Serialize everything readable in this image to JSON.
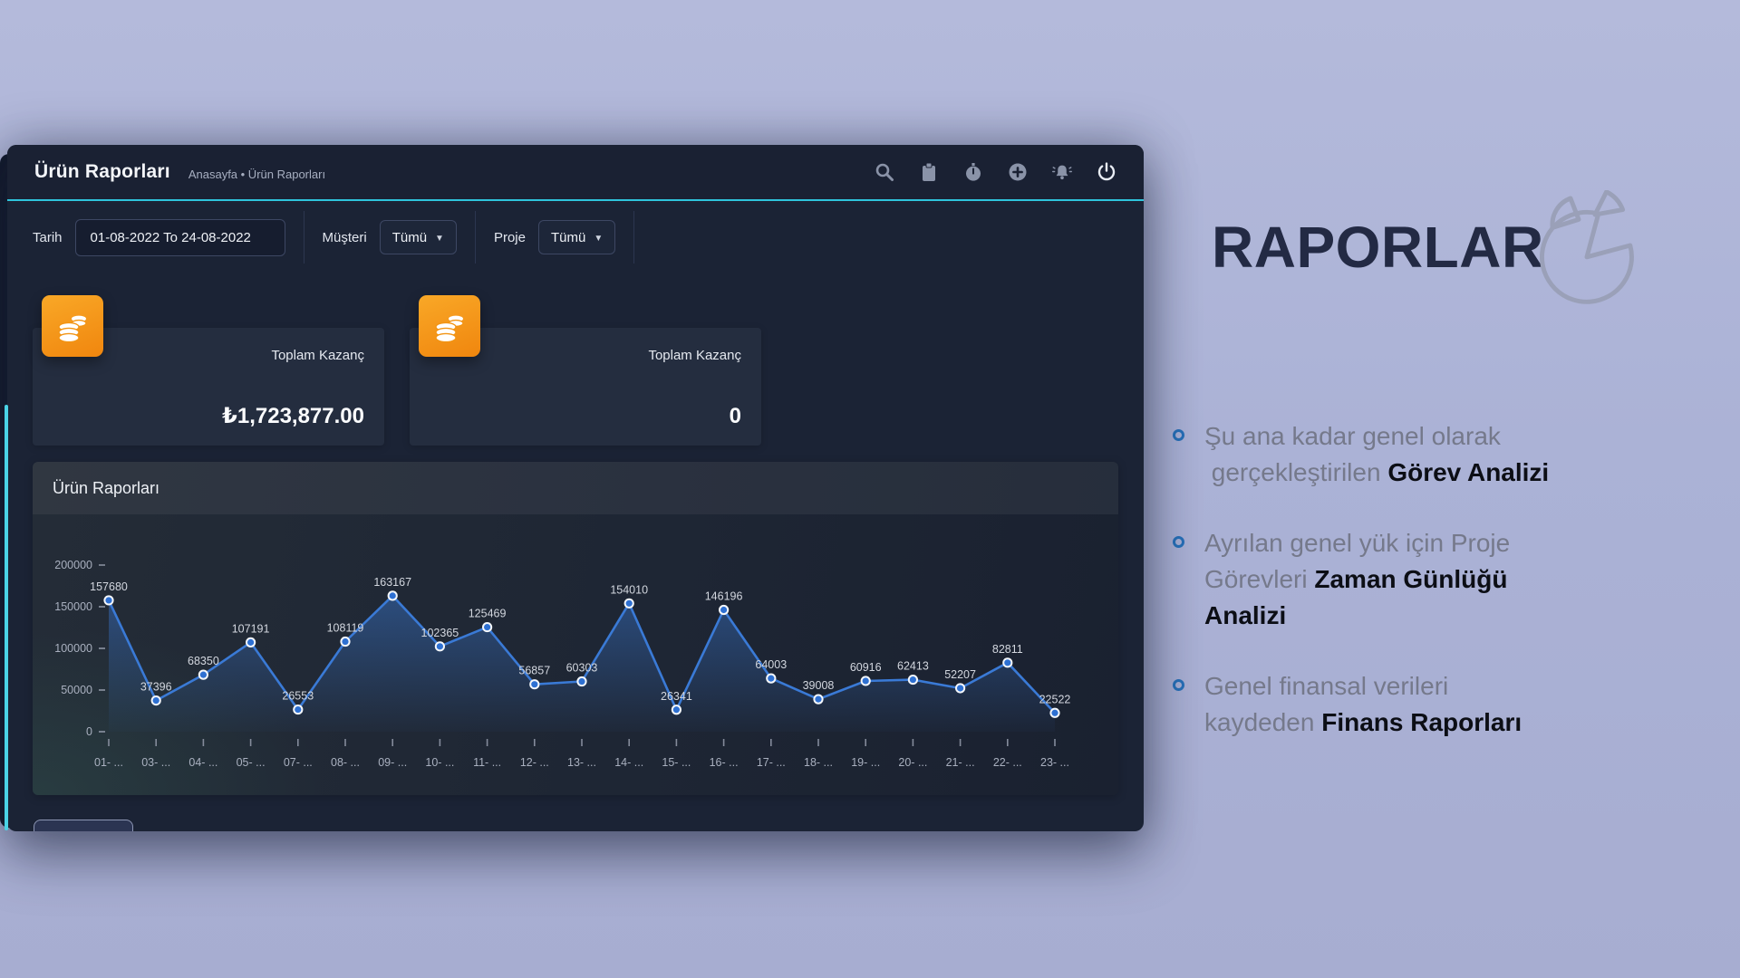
{
  "window": {
    "header": {
      "title": "Ürün Raporları",
      "breadcrumb": "Anasayfa • Ürün Raporları",
      "icons": [
        "search-icon",
        "clipboard-icon",
        "stopwatch-icon",
        "plus-circle-icon",
        "bell-icon",
        "power-icon"
      ]
    },
    "filters": {
      "date_label": "Tarih",
      "date_value": "01-08-2022 To 24-08-2022",
      "customer_label": "Müşteri",
      "customer_value": "Tümü",
      "project_label": "Proje",
      "project_value": "Tümü"
    },
    "cards": [
      {
        "label": "Toplam Kazanç",
        "value": "₺1,723,877.00",
        "icon": "coins-icon"
      },
      {
        "label": "Toplam Kazanç",
        "value": "0",
        "icon": "coins-icon"
      }
    ],
    "panel_title": "Ürün Raporları"
  },
  "chart_data": {
    "type": "line",
    "title": "Ürün Raporları",
    "x": [
      "01- ...",
      "03- ...",
      "04- ...",
      "05- ...",
      "07- ...",
      "08- ...",
      "09- ...",
      "10- ...",
      "11- ...",
      "12- ...",
      "13- ...",
      "14- ...",
      "15- ...",
      "16- ...",
      "17- ...",
      "18- ...",
      "19- ...",
      "20- ...",
      "21- ...",
      "22- ...",
      "23- ..."
    ],
    "values": [
      157680,
      37396,
      68350,
      107191,
      26553,
      108119,
      163167,
      102365,
      125469,
      56857,
      60303,
      154010,
      26341,
      146196,
      64003,
      39008,
      60916,
      62413,
      52207,
      82811,
      22522
    ],
    "ylim": [
      0,
      200000
    ],
    "yticks": [
      0,
      50000,
      100000,
      150000,
      200000
    ],
    "grid": false,
    "legend": "none",
    "line_color": "#3a7ad6",
    "point_fill": "#2e70d2",
    "area_fill": "blue-gradient-fade"
  },
  "aside": {
    "heading": "RAPORLAR",
    "bullets": [
      {
        "lines": [
          [
            {
              "t": "Şu ana kadar genel olarak",
              "b": false
            }
          ],
          [
            {
              "t": " gerçekleştirilen ",
              "b": false
            },
            {
              "t": "Görev Analizi",
              "b": true
            }
          ]
        ]
      },
      {
        "lines": [
          [
            {
              "t": "Ayrılan genel yük için Proje",
              "b": false
            }
          ],
          [
            {
              "t": "Görevleri ",
              "b": false
            },
            {
              "t": "Zaman Günlüğü",
              "b": true
            }
          ],
          [
            {
              "t": "Analizi",
              "b": true
            }
          ]
        ]
      },
      {
        "lines": [
          [
            {
              "t": "Genel finansal verileri",
              "b": false
            }
          ],
          [
            {
              "t": "kaydeden ",
              "b": false
            },
            {
              "t": "Finans Raporları",
              "b": true
            }
          ]
        ]
      }
    ]
  },
  "colors": {
    "background": "#abb2d6",
    "window_bg": "#1b2335",
    "accent_cyan": "#2fc4dc",
    "accent_orange": "#f69a1d",
    "chart_line": "#3a7ad6",
    "bullet_blue": "#2770b8"
  }
}
